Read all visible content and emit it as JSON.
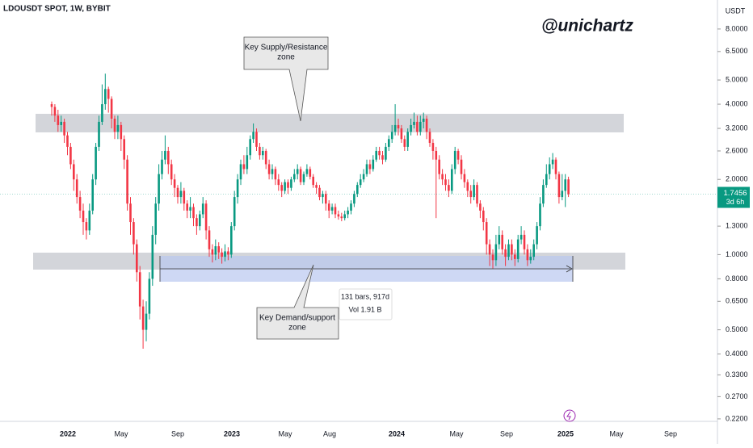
{
  "chart_data": {
    "type": "candlestick",
    "title": "LDOUSDT SPOT, 1W, BYBIT",
    "watermark": "@unichartz",
    "currency": "USDT",
    "countdown": "3d 6h",
    "log_scale": true,
    "up_color": "#089981",
    "down_color": "#f23645",
    "annotations": {
      "supply": [
        "Key Supply/Resistance",
        "zone"
      ],
      "demand": [
        "Key Demand/support",
        "zone"
      ],
      "range": [
        "131 bars, 917d",
        "Vol 1.91 B"
      ]
    },
    "xticks": [
      "2022",
      "May",
      "Sep",
      "2023",
      "May",
      "Aug",
      "2024",
      "May",
      "Sep",
      "2025",
      "May",
      "Sep"
    ],
    "ylim": [
      0.215,
      10.45
    ],
    "yticks": [
      {
        "value": 8,
        "label": "8.0000"
      },
      {
        "value": 6.5,
        "label": "6.5000"
      },
      {
        "value": 5,
        "label": "5.0000"
      },
      {
        "value": 4,
        "label": "4.0000"
      },
      {
        "value": 3.2,
        "label": "3.2000"
      },
      {
        "value": 2.6,
        "label": "2.6000"
      },
      {
        "value": 2,
        "label": "2.0000"
      },
      {
        "value": 1.3,
        "label": "1.3000"
      },
      {
        "value": 1,
        "label": "1.0000"
      },
      {
        "value": 0.8,
        "label": "0.8000"
      },
      {
        "value": 0.65,
        "label": "0.6500"
      },
      {
        "value": 0.5,
        "label": "0.5000"
      },
      {
        "value": 0.4,
        "label": "0.4000"
      },
      {
        "value": 0.33,
        "label": "0.3300"
      },
      {
        "value": 0.27,
        "label": "0.2700"
      },
      {
        "value": 0.22,
        "label": "0.2200"
      }
    ],
    "open": [
      4.0,
      3.9,
      3.6,
      3.3,
      3.4,
      3.0,
      2.7,
      2.3,
      2.0,
      1.7,
      1.5,
      1.35,
      1.25,
      1.5,
      2.0,
      2.7,
      3.4,
      4.0,
      4.6,
      4.2,
      3.5,
      3.1,
      3.3,
      2.9,
      2.4,
      1.6,
      1.35,
      1.1,
      0.85,
      0.62,
      0.5,
      0.58,
      0.8,
      1.2,
      1.6,
      2.1,
      2.4,
      2.6,
      2.3,
      2.0,
      1.85,
      1.7,
      1.8,
      1.6,
      1.5,
      1.55,
      1.4,
      1.3,
      1.45,
      1.6,
      1.25,
      1.05,
      1.0,
      1.08,
      1.02,
      0.98,
      1.03,
      1.0,
      1.3,
      1.7,
      2.0,
      2.3,
      2.2,
      2.5,
      2.9,
      3.1,
      2.7,
      2.5,
      2.6,
      2.3,
      2.1,
      2.2,
      2.0,
      1.9,
      1.8,
      1.95,
      1.85,
      2.0,
      2.1,
      2.2,
      1.95,
      2.1,
      2.2,
      2.05,
      1.9,
      1.85,
      1.7,
      1.75,
      1.6,
      1.5,
      1.55,
      1.45,
      1.42,
      1.4,
      1.45,
      1.5,
      1.6,
      1.75,
      1.9,
      2.0,
      2.1,
      2.3,
      2.2,
      2.4,
      2.6,
      2.5,
      2.4,
      2.7,
      2.9,
      3.1,
      3.3,
      3.2,
      2.9,
      2.7,
      3.1,
      3.3,
      3.4,
      3.1,
      3.4,
      3.5,
      3.1,
      2.8,
      2.6,
      2.4,
      2.1,
      2.0,
      1.9,
      1.8,
      2.2,
      2.6,
      2.4,
      2.1,
      1.95,
      1.8,
      1.7,
      1.9,
      1.6,
      1.5,
      1.35,
      1.1,
      1.0,
      0.95,
      1.1,
      1.2,
      1.05,
      0.98,
      1.1,
      1.0,
      0.96,
      1.15,
      1.2,
      1.05,
      0.95,
      0.98,
      1.1,
      1.3,
      1.6,
      1.9,
      2.1,
      2.3,
      2.4,
      2.1,
      1.7,
      1.8,
      2.0
    ],
    "high": [
      4.1,
      4.0,
      3.8,
      3.6,
      3.5,
      3.1,
      2.8,
      2.4,
      2.1,
      1.8,
      1.6,
      1.4,
      1.6,
      2.1,
      2.8,
      3.6,
      4.8,
      5.3,
      4.7,
      4.3,
      3.6,
      3.6,
      3.4,
      3.0,
      2.5,
      1.7,
      1.4,
      1.15,
      0.9,
      0.66,
      0.65,
      0.85,
      1.3,
      1.7,
      2.3,
      2.6,
      3.0,
      2.7,
      2.4,
      2.1,
      1.9,
      1.95,
      1.85,
      1.65,
      1.7,
      1.6,
      1.45,
      1.5,
      1.7,
      1.65,
      1.3,
      1.1,
      1.15,
      1.12,
      1.06,
      1.1,
      1.07,
      1.35,
      1.8,
      2.1,
      2.4,
      2.5,
      2.7,
      3.0,
      3.35,
      3.2,
      2.8,
      2.7,
      2.65,
      2.4,
      2.3,
      2.25,
      2.1,
      1.95,
      2.0,
      2.0,
      2.05,
      2.2,
      2.3,
      2.25,
      2.15,
      2.3,
      2.25,
      2.1,
      1.95,
      1.9,
      1.8,
      1.8,
      1.65,
      1.6,
      1.6,
      1.5,
      1.47,
      1.5,
      1.55,
      1.65,
      1.8,
      1.95,
      2.1,
      2.2,
      2.4,
      2.4,
      2.5,
      2.7,
      2.7,
      2.6,
      2.8,
      3.0,
      3.3,
      4.0,
      3.5,
      3.3,
      3.0,
      3.2,
      3.5,
      3.7,
      3.6,
      3.6,
      3.7,
      3.6,
      3.2,
      2.9,
      2.7,
      2.5,
      2.2,
      2.1,
      2.0,
      2.3,
      2.7,
      2.65,
      2.5,
      2.2,
      2.0,
      1.9,
      2.0,
      1.95,
      1.65,
      1.55,
      1.4,
      1.15,
      1.05,
      1.2,
      1.3,
      1.25,
      1.1,
      1.15,
      1.15,
      1.05,
      1.2,
      1.3,
      1.25,
      1.1,
      1.05,
      1.15,
      1.35,
      1.7,
      2.0,
      2.3,
      2.45,
      2.55,
      2.45,
      2.15,
      2.1,
      2.1,
      2.05
    ],
    "low": [
      3.6,
      3.4,
      3.1,
      3.1,
      2.8,
      2.5,
      2.2,
      1.8,
      1.6,
      1.4,
      1.2,
      1.15,
      1.2,
      1.45,
      1.9,
      2.6,
      3.3,
      3.8,
      3.7,
      3.2,
      2.9,
      2.9,
      2.6,
      2.2,
      1.5,
      1.2,
      1.0,
      0.78,
      0.55,
      0.42,
      0.45,
      0.55,
      0.75,
      1.1,
      1.5,
      2.0,
      2.3,
      2.1,
      1.9,
      1.7,
      1.6,
      1.6,
      1.5,
      1.4,
      1.4,
      1.3,
      1.2,
      1.25,
      1.4,
      1.15,
      0.98,
      0.93,
      0.95,
      0.96,
      0.92,
      0.94,
      0.95,
      0.97,
      1.25,
      1.6,
      1.9,
      2.1,
      2.1,
      2.4,
      2.8,
      2.6,
      2.4,
      2.4,
      2.2,
      2.0,
      2.0,
      1.9,
      1.8,
      1.7,
      1.75,
      1.75,
      1.8,
      1.95,
      2.0,
      1.9,
      1.9,
      2.05,
      2.0,
      1.85,
      1.75,
      1.65,
      1.6,
      1.5,
      1.4,
      1.45,
      1.4,
      1.38,
      1.36,
      1.37,
      1.4,
      1.45,
      1.55,
      1.7,
      1.85,
      1.95,
      2.05,
      2.1,
      2.15,
      2.35,
      2.4,
      2.3,
      2.35,
      2.6,
      2.8,
      3.0,
      3.0,
      2.8,
      2.6,
      2.6,
      3.0,
      3.2,
      3.0,
      3.0,
      3.2,
      2.9,
      2.7,
      2.4,
      1.4,
      2.0,
      1.9,
      1.8,
      1.7,
      1.75,
      2.1,
      2.3,
      2.0,
      1.85,
      1.7,
      1.6,
      1.65,
      1.55,
      1.4,
      1.25,
      1.0,
      0.9,
      0.88,
      0.9,
      1.05,
      1.0,
      0.9,
      0.95,
      0.95,
      0.9,
      0.93,
      1.1,
      1.0,
      0.9,
      0.92,
      0.95,
      1.05,
      1.25,
      1.55,
      1.85,
      2.0,
      2.2,
      2.0,
      1.6,
      1.65,
      1.55,
      1.7
    ],
    "close": [
      3.9,
      3.6,
      3.3,
      3.4,
      3.0,
      2.7,
      2.3,
      2.0,
      1.7,
      1.5,
      1.35,
      1.25,
      1.5,
      2.0,
      2.7,
      3.4,
      4.0,
      4.6,
      4.2,
      3.5,
      3.1,
      3.3,
      2.9,
      2.4,
      1.6,
      1.35,
      1.1,
      0.85,
      0.62,
      0.5,
      0.58,
      0.8,
      1.2,
      1.6,
      2.1,
      2.4,
      2.6,
      2.3,
      2.0,
      1.85,
      1.7,
      1.8,
      1.6,
      1.5,
      1.55,
      1.4,
      1.3,
      1.45,
      1.6,
      1.25,
      1.05,
      1.0,
      1.08,
      1.02,
      0.98,
      1.03,
      1.0,
      1.3,
      1.7,
      2.0,
      2.3,
      2.2,
      2.5,
      2.9,
      3.1,
      2.7,
      2.5,
      2.6,
      2.3,
      2.1,
      2.2,
      2.0,
      1.9,
      1.8,
      1.95,
      1.85,
      2.0,
      2.1,
      2.2,
      1.95,
      2.1,
      2.2,
      2.05,
      1.9,
      1.85,
      1.7,
      1.75,
      1.6,
      1.5,
      1.55,
      1.45,
      1.42,
      1.4,
      1.45,
      1.5,
      1.6,
      1.75,
      1.9,
      2.0,
      2.1,
      2.3,
      2.2,
      2.4,
      2.6,
      2.5,
      2.4,
      2.7,
      2.9,
      3.1,
      3.3,
      3.2,
      2.9,
      2.7,
      3.1,
      3.3,
      3.4,
      3.1,
      3.4,
      3.5,
      3.1,
      2.8,
      2.6,
      2.4,
      2.1,
      2.0,
      1.9,
      1.8,
      2.2,
      2.6,
      2.4,
      2.1,
      1.95,
      1.8,
      1.7,
      1.9,
      1.6,
      1.5,
      1.35,
      1.1,
      1.0,
      0.95,
      1.1,
      1.2,
      1.05,
      0.98,
      1.1,
      1.0,
      0.96,
      1.15,
      1.2,
      1.05,
      0.95,
      0.98,
      1.1,
      1.3,
      1.6,
      1.9,
      2.1,
      2.3,
      2.4,
      2.1,
      1.7,
      1.8,
      2.0,
      1.7456
    ]
  }
}
